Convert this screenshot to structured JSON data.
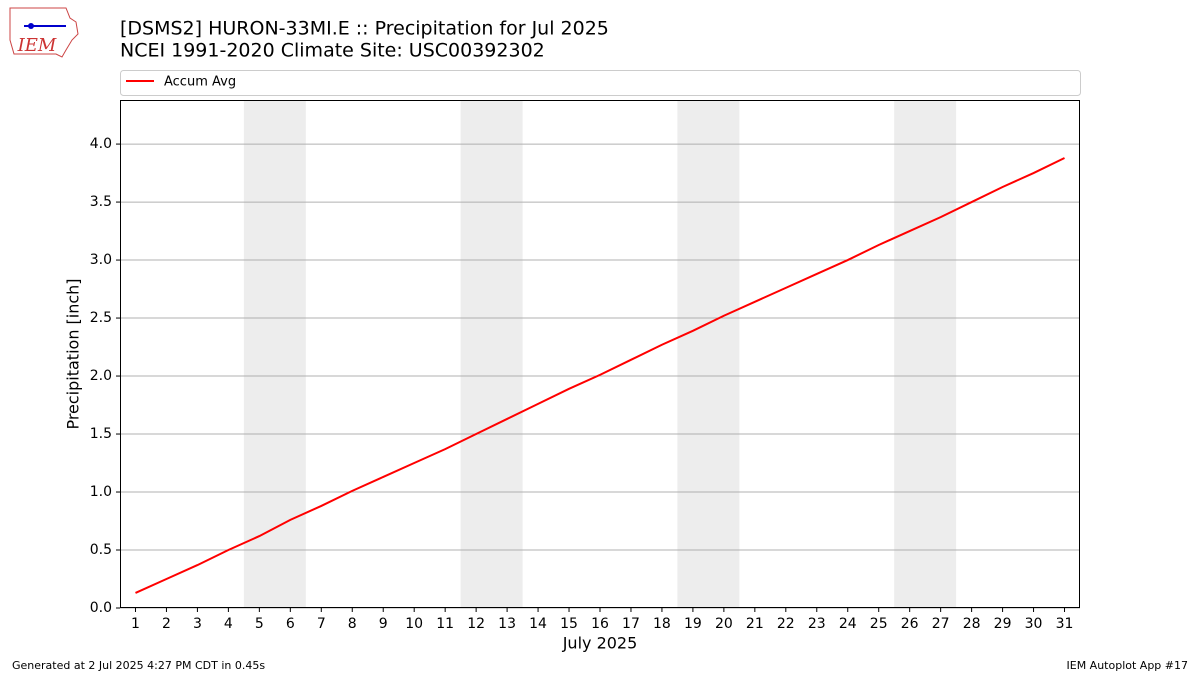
{
  "logo": "IEM",
  "chart_data": {
    "type": "line",
    "title": "[DSMS2] HURON-33MI.E :: Precipitation for Jul 2025",
    "subtitle": "NCEI 1991-2020 Climate Site: USC00392302",
    "xlabel": "July 2025",
    "ylabel": "Precipitation [inch]",
    "x": [
      1,
      2,
      3,
      4,
      5,
      6,
      7,
      8,
      9,
      10,
      11,
      12,
      13,
      14,
      15,
      16,
      17,
      18,
      19,
      20,
      21,
      22,
      23,
      24,
      25,
      26,
      27,
      28,
      29,
      30,
      31
    ],
    "series": [
      {
        "name": "Accum Avg",
        "color": "#ff0000",
        "values": [
          0.13,
          0.25,
          0.37,
          0.5,
          0.62,
          0.76,
          0.88,
          1.01,
          1.13,
          1.25,
          1.37,
          1.5,
          1.63,
          1.76,
          1.89,
          2.01,
          2.14,
          2.27,
          2.39,
          2.52,
          2.64,
          2.76,
          2.88,
          3.0,
          3.13,
          3.25,
          3.37,
          3.5,
          3.63,
          3.75,
          3.88
        ]
      }
    ],
    "shaded_spans": [
      [
        4.5,
        6.5
      ],
      [
        11.5,
        13.5
      ],
      [
        18.5,
        20.5
      ],
      [
        25.5,
        27.5
      ]
    ],
    "xlim": [
      0.5,
      31.5
    ],
    "xticks": [
      1,
      2,
      3,
      4,
      5,
      6,
      7,
      8,
      9,
      10,
      11,
      12,
      13,
      14,
      15,
      16,
      17,
      18,
      19,
      20,
      21,
      22,
      23,
      24,
      25,
      26,
      27,
      28,
      29,
      30,
      31
    ],
    "ylim": [
      0,
      4.38
    ],
    "yticks": [
      {
        "value": 0,
        "label": "0.0"
      },
      0.5,
      {
        "value": 1,
        "label": "1.0"
      },
      1.5,
      {
        "value": 2,
        "label": "2.0"
      },
      2.5,
      {
        "value": 3,
        "label": "3.0"
      },
      3.5,
      {
        "value": 4,
        "label": "4.0"
      }
    ],
    "grid": true,
    "legend": "top"
  },
  "footer": {
    "left": "Generated at 2 Jul 2025 4:27 PM CDT in 0.45s",
    "right": "IEM Autoplot App #17"
  }
}
